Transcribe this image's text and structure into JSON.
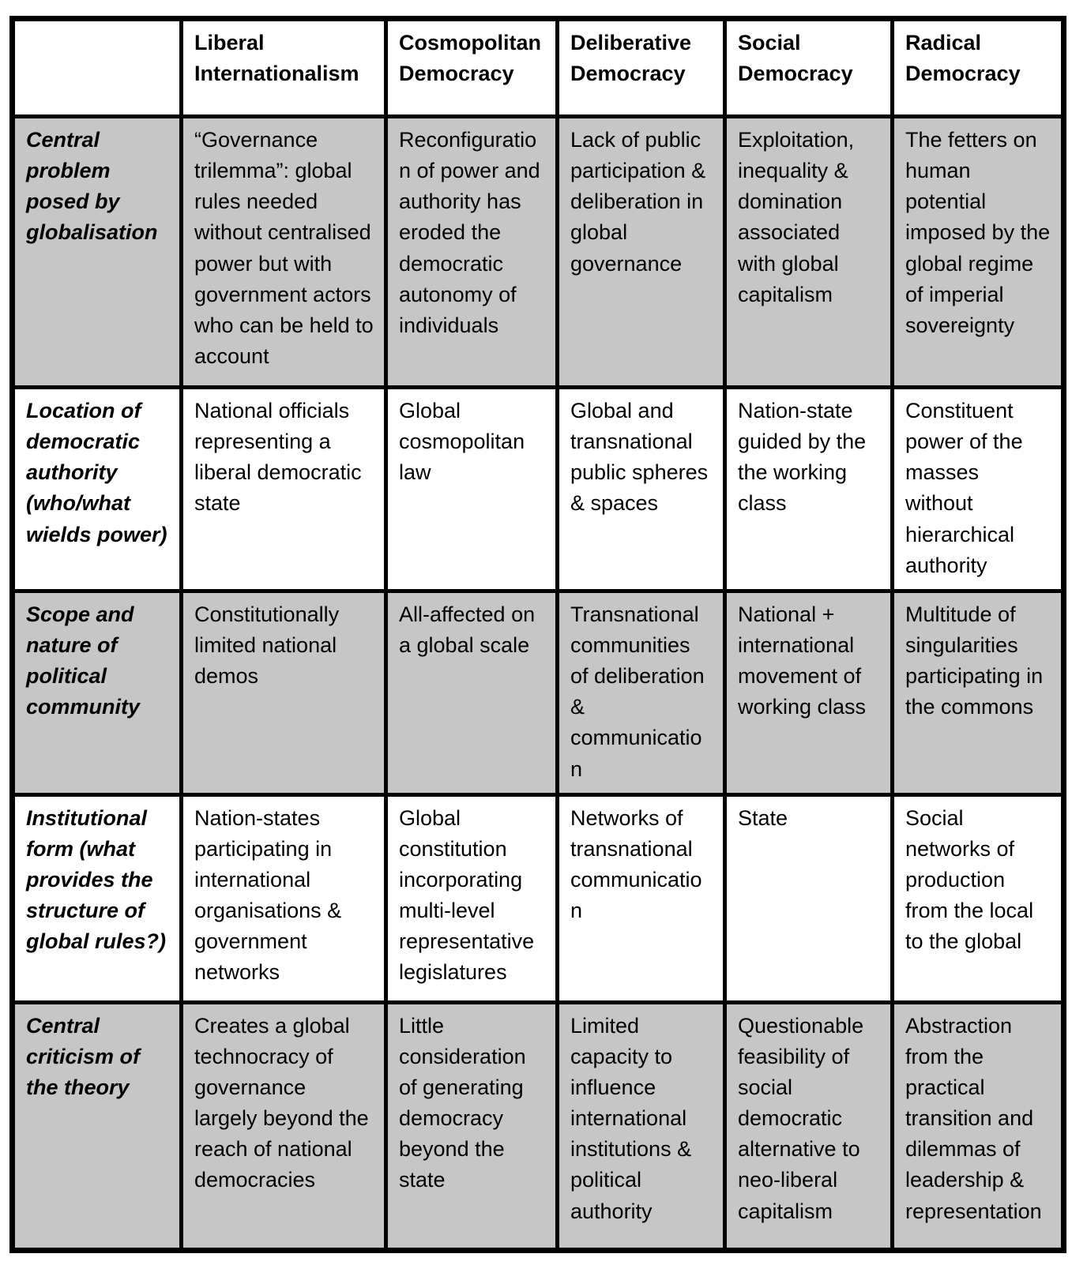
{
  "colors": {
    "shaded_row_bg": "#c6c6c6",
    "border": "#000000",
    "page_bg": "#ffffff"
  },
  "table": {
    "columns": [
      "",
      "Liberal Internationalism",
      "Cosmopolitan Democracy",
      "Deliberative Democracy",
      "Social Democracy",
      "Radical Democracy"
    ],
    "rows": [
      {
        "header": "Central problem posed by globalisation",
        "shaded": true,
        "cells": [
          "“Governance trilemma”: global rules needed without centralised power but with government actors who can be held to account",
          "Reconfiguration of power and authority has eroded the democratic autonomy of individuals",
          "Lack of public participation & deliberation in global governance",
          "Exploitation, inequality & domination associated with global capitalism",
          "The fetters on human potential imposed by the global regime of imperial sovereignty"
        ]
      },
      {
        "header": "Location of democratic authority (who/what wields power)",
        "shaded": false,
        "cells": [
          "National officials representing a liberal democratic state",
          "Global cosmopolitan law",
          "Global and transnational public spheres & spaces",
          "Nation-state guided by the the working class",
          "Constituent power of the masses without hierarchical authority"
        ]
      },
      {
        "header": "Scope and nature of political community",
        "shaded": true,
        "cells": [
          "Constitutionally limited national demos",
          "All-affected on a global scale",
          "Transnational communities of deliberation & communication",
          "National + international movement of working class",
          "Multitude of singularities participating in the commons"
        ]
      },
      {
        "header": "Institutional form (what provides the structure of global rules?)",
        "shaded": false,
        "cells": [
          "Nation-states participating in international organisations & government networks",
          "Global constitution incorporating multi-level representative legislatures",
          "Networks of transnational communication",
          "State",
          "Social networks of production from the local to the global"
        ]
      },
      {
        "header": "Central criticism of the theory",
        "shaded": true,
        "cells": [
          "Creates a global technocracy of governance largely beyond the reach of national democracies",
          "Little consideration of generating democracy beyond the state",
          "Limited capacity to influence international institutions & political authority",
          "Questionable feasibility of social democratic alternative to neo-liberal capitalism",
          "Abstraction from the practical transition and dilemmas of leadership & representation"
        ]
      }
    ]
  }
}
